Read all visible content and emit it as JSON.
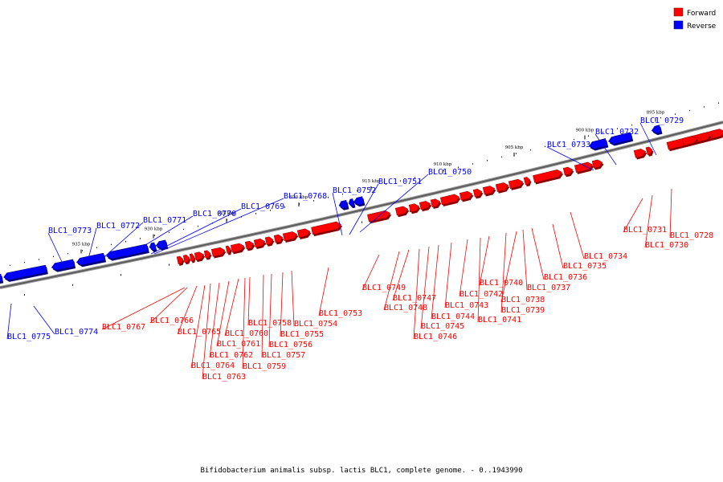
{
  "colors": {
    "forward": "#ff0000",
    "reverse": "#0000ff",
    "axis": "#7f7f7f"
  },
  "legend": {
    "forward_label": "Forward",
    "reverse_label": "Reverse"
  },
  "caption": "Bifidobacterium animalis subsp. lactis BLC1, complete genome. - 0..1943990",
  "ticks": [
    "935 kbp",
    "930 kbp",
    "925 kbp",
    "920 kbp",
    "915 kbp",
    "910 kbp",
    "905 kbp",
    "900 kbp",
    "895 kbp"
  ],
  "genes": [
    {
      "id": "BLC1_0775",
      "strand": "reverse"
    },
    {
      "id": "BLC1_0774",
      "strand": "reverse"
    },
    {
      "id": "BLC1_0773",
      "strand": "reverse"
    },
    {
      "id": "BLC1_0772",
      "strand": "reverse"
    },
    {
      "id": "BLC1_0771",
      "strand": "reverse"
    },
    {
      "id": "BLC1_0770",
      "strand": "reverse"
    },
    {
      "id": "BLC1_0769",
      "strand": "reverse"
    },
    {
      "id": "BLC1_0768",
      "strand": "reverse"
    },
    {
      "id": "BLC1_0767",
      "strand": "forward"
    },
    {
      "id": "BLC1_0766",
      "strand": "forward"
    },
    {
      "id": "BLC1_0765",
      "strand": "forward"
    },
    {
      "id": "BLC1_0764",
      "strand": "forward"
    },
    {
      "id": "BLC1_0763",
      "strand": "forward"
    },
    {
      "id": "BLC1_0762",
      "strand": "forward"
    },
    {
      "id": "BLC1_0761",
      "strand": "forward"
    },
    {
      "id": "BLC1_0760",
      "strand": "forward"
    },
    {
      "id": "BLC1_0759",
      "strand": "forward"
    },
    {
      "id": "BLC1_0758",
      "strand": "forward"
    },
    {
      "id": "BLC1_0757",
      "strand": "forward"
    },
    {
      "id": "BLC1_0756",
      "strand": "forward"
    },
    {
      "id": "BLC1_0755",
      "strand": "forward"
    },
    {
      "id": "BLC1_0754",
      "strand": "forward"
    },
    {
      "id": "BLC1_0753",
      "strand": "forward"
    },
    {
      "id": "BLC1_0752",
      "strand": "reverse"
    },
    {
      "id": "BLC1_0751",
      "strand": "reverse"
    },
    {
      "id": "BLC1_0750",
      "strand": "reverse"
    },
    {
      "id": "BLC1_0749",
      "strand": "forward"
    },
    {
      "id": "BLC1_0748",
      "strand": "forward"
    },
    {
      "id": "BLC1_0747",
      "strand": "forward"
    },
    {
      "id": "BLC1_0746",
      "strand": "forward"
    },
    {
      "id": "BLC1_0745",
      "strand": "forward"
    },
    {
      "id": "BLC1_0744",
      "strand": "forward"
    },
    {
      "id": "BLC1_0743",
      "strand": "forward"
    },
    {
      "id": "BLC1_0742",
      "strand": "forward"
    },
    {
      "id": "BLC1_0741",
      "strand": "forward"
    },
    {
      "id": "BLC1_0740",
      "strand": "forward"
    },
    {
      "id": "BLC1_0739",
      "strand": "forward"
    },
    {
      "id": "BLC1_0738",
      "strand": "forward"
    },
    {
      "id": "BLC1_0737",
      "strand": "forward"
    },
    {
      "id": "BLC1_0736",
      "strand": "forward"
    },
    {
      "id": "BLC1_0735",
      "strand": "forward"
    },
    {
      "id": "BLC1_0734",
      "strand": "forward"
    },
    {
      "id": "BLC1_0733",
      "strand": "reverse"
    },
    {
      "id": "BLC1_0732",
      "strand": "reverse"
    },
    {
      "id": "BLC1_0731",
      "strand": "forward"
    },
    {
      "id": "BLC1_0730",
      "strand": "forward"
    },
    {
      "id": "BLC1_0729",
      "strand": "reverse"
    },
    {
      "id": "BLC1_0728",
      "strand": "forward"
    }
  ]
}
